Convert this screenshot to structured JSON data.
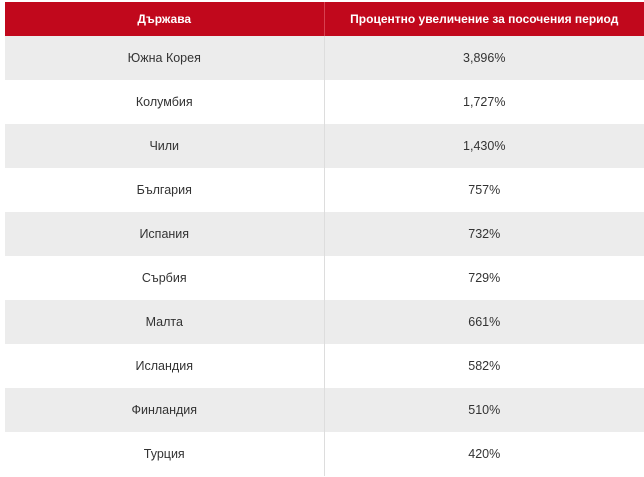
{
  "table": {
    "headers": [
      "Държава",
      "Процентно увеличение за посочения период"
    ],
    "rows": [
      {
        "country": "Южна Корея",
        "increase": "3,896%"
      },
      {
        "country": "Колумбия",
        "increase": "1,727%"
      },
      {
        "country": "Чили",
        "increase": "1,430%"
      },
      {
        "country": "България",
        "increase": "757%"
      },
      {
        "country": "Испания",
        "increase": "732%"
      },
      {
        "country": "Сърбия",
        "increase": "729%"
      },
      {
        "country": "Малта",
        "increase": "661%"
      },
      {
        "country": "Исландия",
        "increase": "582%"
      },
      {
        "country": "Финландия",
        "increase": "510%"
      },
      {
        "country": "Турция",
        "increase": "420%"
      }
    ]
  },
  "colors": {
    "header": "#c1081c",
    "stripe": "#ececec"
  }
}
